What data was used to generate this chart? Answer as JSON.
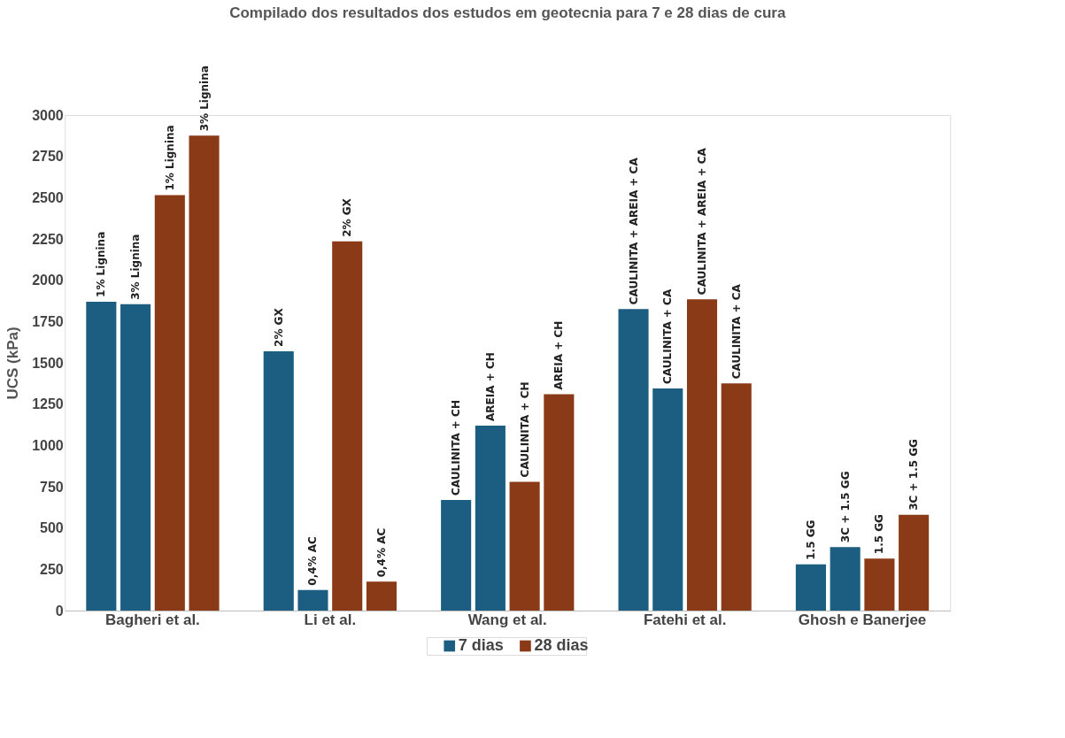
{
  "chart_data": {
    "type": "bar",
    "title": "Compilado dos resultados dos estudos em geotecnia para 7 e 28 dias de cura",
    "ylabel": "UCS (kPa)",
    "categories": [
      "Bagheri et al.",
      "Li et al.",
      "Wang et al.",
      "Fatehi et al.",
      "Ghosh e Banerjee"
    ],
    "series": [
      {
        "name": "7 dias",
        "color": "#1b5e82",
        "values": [
          1870,
          1570,
          670,
          1825,
          280
        ]
      },
      {
        "color": "#1b5e82",
        "values": [
          1855,
          125,
          1120,
          1345,
          385
        ]
      },
      {
        "name": "28 dias",
        "color": "#8b3a17",
        "values": [
          2515,
          2235,
          780,
          1885,
          315
        ]
      },
      {
        "color": "#8b3a17",
        "values": [
          2875,
          175,
          1310,
          1375,
          580
        ]
      }
    ],
    "annotations": [
      "1% Lignina",
      "3% Lignina",
      "1% Lignina",
      "3% Lignina",
      "2% GX",
      "0,4% AC",
      "2% GX",
      "0,4% AC",
      "CAULINITA + CH",
      "AREIA + CH",
      "CAULINITA + CH",
      "AREIA + CH",
      "CAULINITA + AREIA + CA",
      "CAULINITA + CA",
      "CAULINITA + AREIA + CA",
      "CAULINITA + CA",
      "1.5 GG",
      "3C + 1.5 GG",
      "1.5 GG",
      "3C + 1.5 GG"
    ],
    "ylim": [
      0,
      3000
    ],
    "yticks": [
      0,
      250,
      500,
      750,
      1000,
      1250,
      1500,
      1750,
      2000,
      2250,
      2500,
      2750,
      3000
    ],
    "legend": "bottom"
  }
}
